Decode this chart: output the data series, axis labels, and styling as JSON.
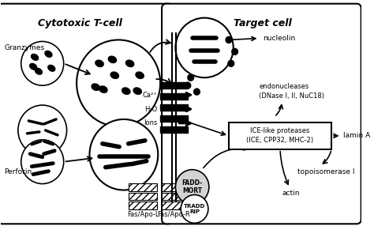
{
  "bg_color": "#ffffff",
  "left_label": "Cytotoxic T-cell",
  "right_label": "Target cell",
  "labels": {
    "granzymes": "Granzymes",
    "perforin": "Perforin",
    "nucleolin": "nucleolin",
    "endonucleases": "endonucleases\n(DNase I, II, NuC18)",
    "ice_proteases": "ICE-like proteases\n(ICE, CPP32, MHC-2)",
    "lamin": "lamin A",
    "topoisomerase": "topoisomerase I",
    "actin": "actin",
    "ca": "Ca²⁺",
    "h2o": "H₂O",
    "ions": "Ions",
    "fadd": "FADD-\nMORT",
    "tradd": "TRADD\nRIP",
    "fasL": "Fas/Apo-L",
    "fasR": "Fas/Apo-R"
  }
}
